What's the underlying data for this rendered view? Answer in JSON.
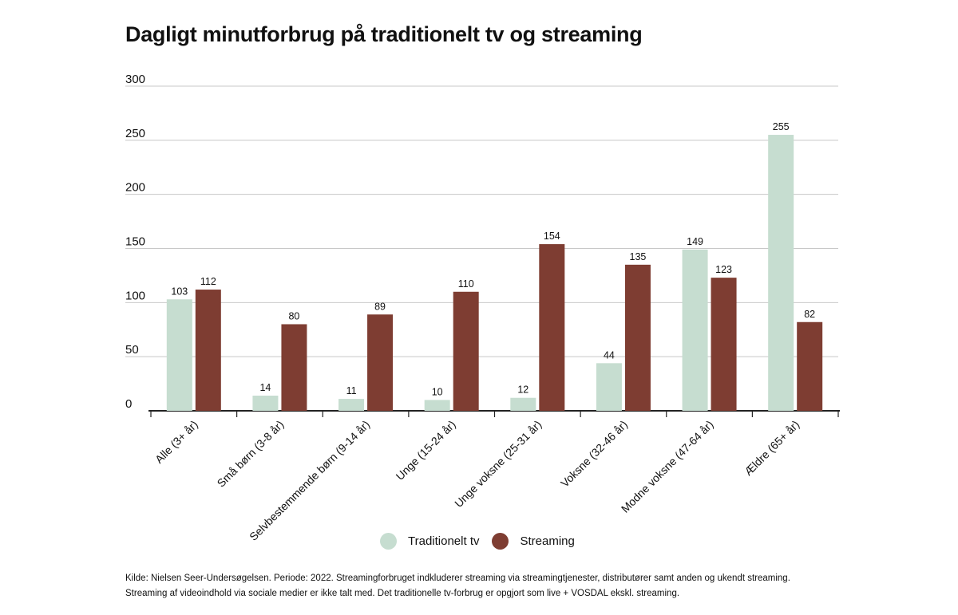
{
  "chart_data": {
    "type": "bar",
    "title": "Dagligt minutforbrug på traditionelt tv og streaming",
    "categories": [
      "Alle (3+ år)",
      "Små børn (3-8 år)",
      "Selvbestemmende børn (9-14 år)",
      "Unge (15-24 år)",
      "Unge voksne (25-31 år)",
      "Voksne (32-46 år)",
      "Modne voksne (47-64 år)",
      "Ældre (65+ år)"
    ],
    "series": [
      {
        "name": "Traditionelt tv",
        "color": "#c6ddd0",
        "values": [
          103,
          14,
          11,
          10,
          12,
          44,
          149,
          255
        ]
      },
      {
        "name": "Streaming",
        "color": "#7e3d32",
        "values": [
          112,
          80,
          89,
          110,
          154,
          135,
          123,
          82
        ]
      }
    ],
    "yticks": [
      "0",
      "50",
      "100",
      "150",
      "200",
      "250",
      "300"
    ],
    "ylim": [
      0,
      300
    ],
    "xlabel": "",
    "ylabel": "",
    "grid": true,
    "legend": "bottom-center"
  },
  "source": {
    "line1": "Kilde: Nielsen Seer-Undersøgelsen. Periode: 2022. Streamingforbruget indkluderer streaming via streamingtjenester, distributører samt anden og ukendt streaming.",
    "line2": "Streaming af videoindhold via sociale medier er ikke talt med. Det traditionelle tv-forbrug er opgjort som live + VOSDAL ekskl. streaming."
  }
}
